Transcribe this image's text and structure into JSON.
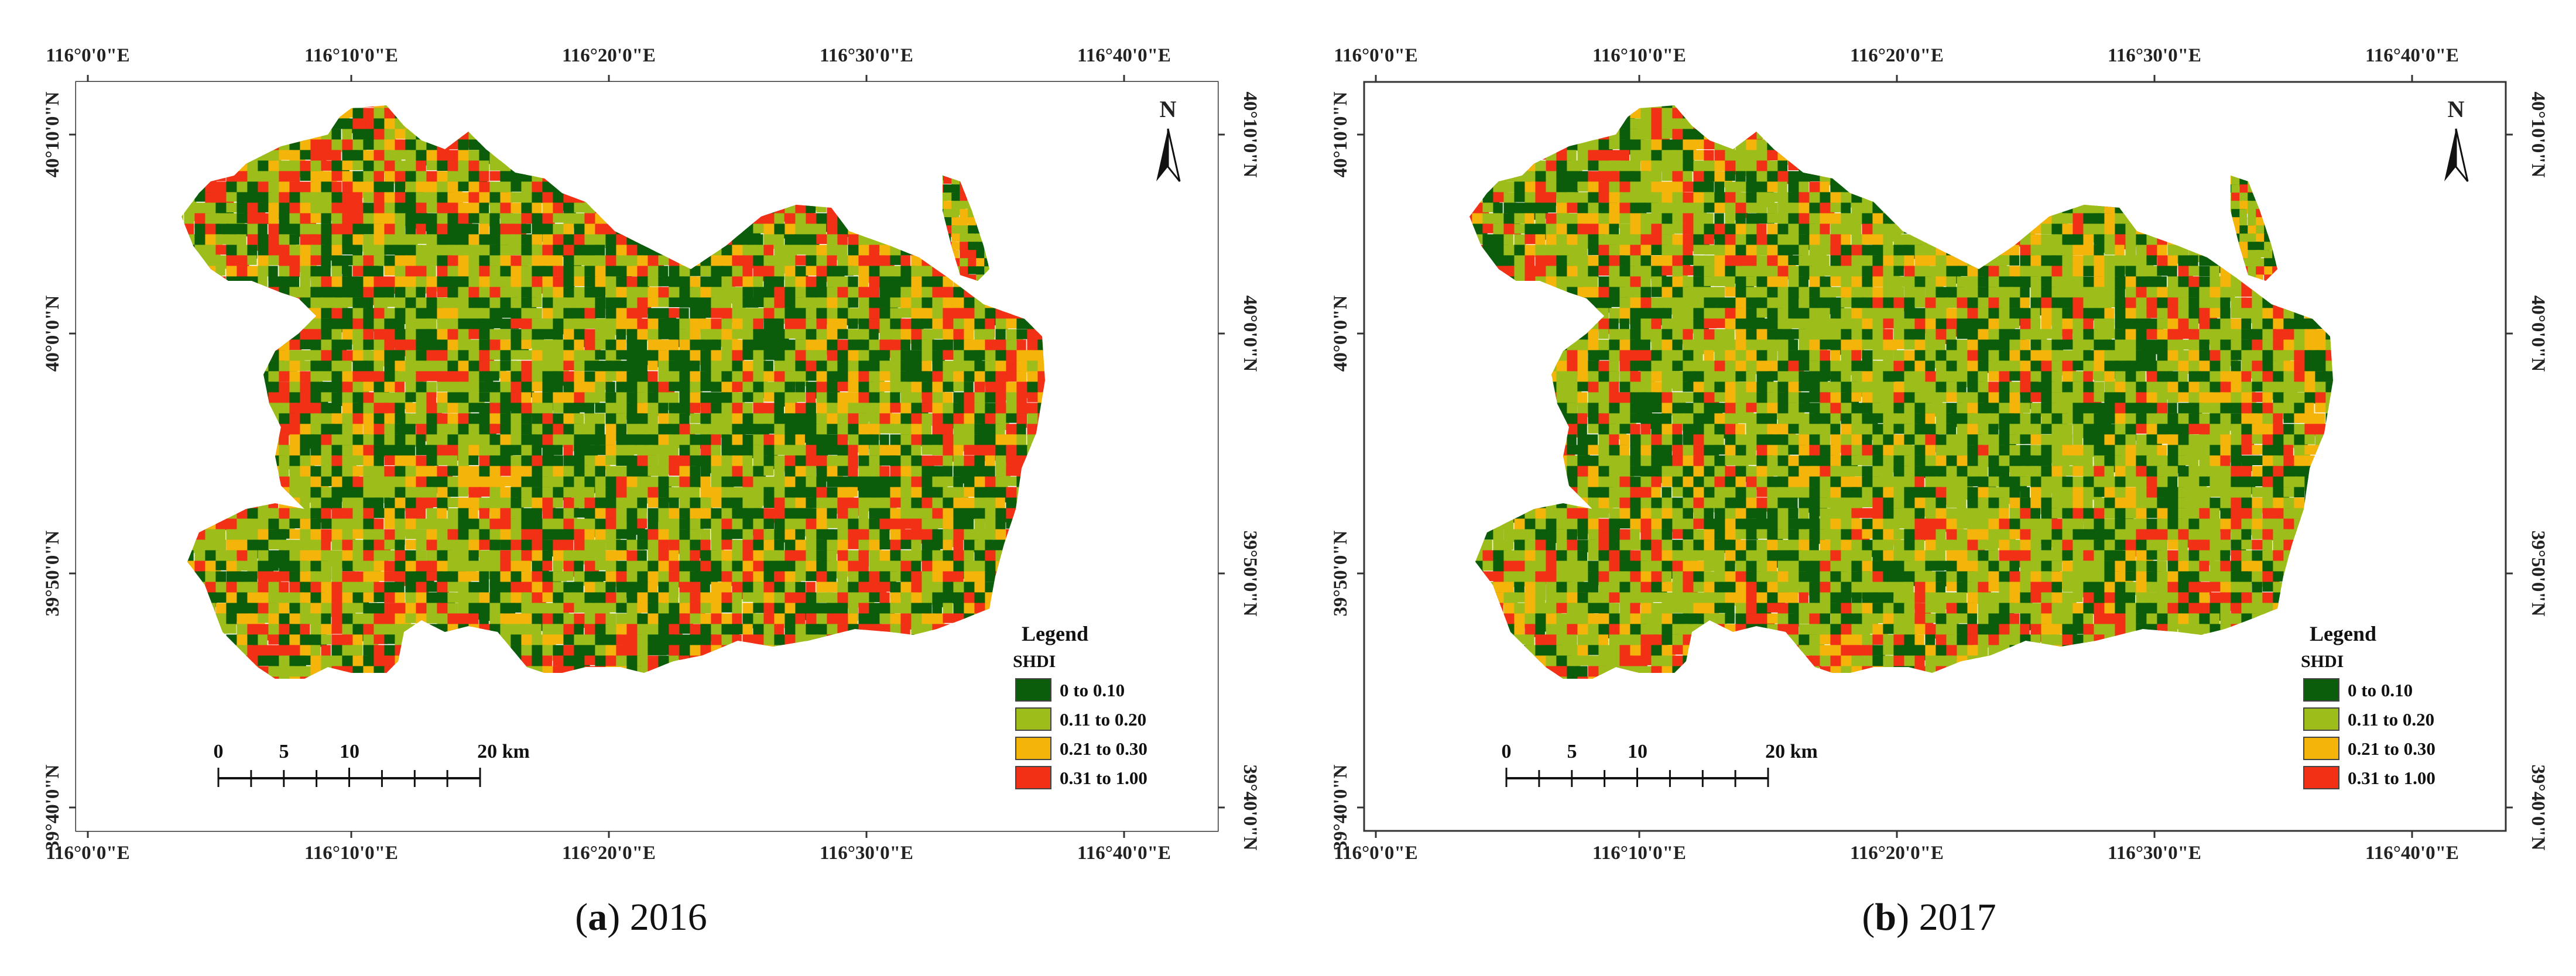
{
  "colors": {
    "class_1": "#0b5d0b",
    "class_2": "#9cbd1a",
    "class_3": "#f5b40a",
    "class_4": "#f23016",
    "frame": "#333333"
  },
  "panels": [
    {
      "caption_letter": "a",
      "caption_year": "2016",
      "mix": [
        0.27,
        0.31,
        0.16,
        0.26
      ],
      "lon_ticks": [
        "116°0'0\"E",
        "116°10'0\"E",
        "116°20'0\"E",
        "116°30'0\"E",
        "116°40'0\"E"
      ],
      "lat_ticks": [
        "40°10'0\"N",
        "40°0'0\"N",
        "39°50'0\"N",
        "39°40'0\"N"
      ],
      "north_label": "N",
      "legend": {
        "title": "Legend",
        "subtitle": "SHDI",
        "items": [
          {
            "label": "0 to 0.10",
            "color": "#0b5d0b"
          },
          {
            "label": "0.11 to 0.20",
            "color": "#9cbd1a"
          },
          {
            "label": "0.21 to 0.30",
            "color": "#f5b40a"
          },
          {
            "label": "0.31 to 1.00",
            "color": "#f23016"
          }
        ]
      },
      "scale": {
        "labels": [
          "0",
          "5",
          "10",
          "20 km"
        ]
      }
    },
    {
      "caption_letter": "b",
      "caption_year": "2017",
      "mix": [
        0.22,
        0.4,
        0.16,
        0.22
      ],
      "lon_ticks": [
        "116°0'0\"E",
        "116°10'0\"E",
        "116°20'0\"E",
        "116°30'0\"E",
        "116°40'0\"E"
      ],
      "lat_ticks": [
        "40°10'0\"N",
        "40°0'0\"N",
        "39°50'0\"N",
        "39°40'0\"N"
      ],
      "north_label": "N",
      "legend": {
        "title": "Legend",
        "subtitle": "SHDI",
        "items": [
          {
            "label": "0 to 0.10",
            "color": "#0b5d0b"
          },
          {
            "label": "0.11 to 0.20",
            "color": "#9cbd1a"
          },
          {
            "label": "0.21 to 0.30",
            "color": "#f5b40a"
          },
          {
            "label": "0.31 to 1.00",
            "color": "#f23016"
          }
        ]
      },
      "scale": {
        "labels": [
          "0",
          "5",
          "10",
          "20 km"
        ]
      }
    }
  ]
}
